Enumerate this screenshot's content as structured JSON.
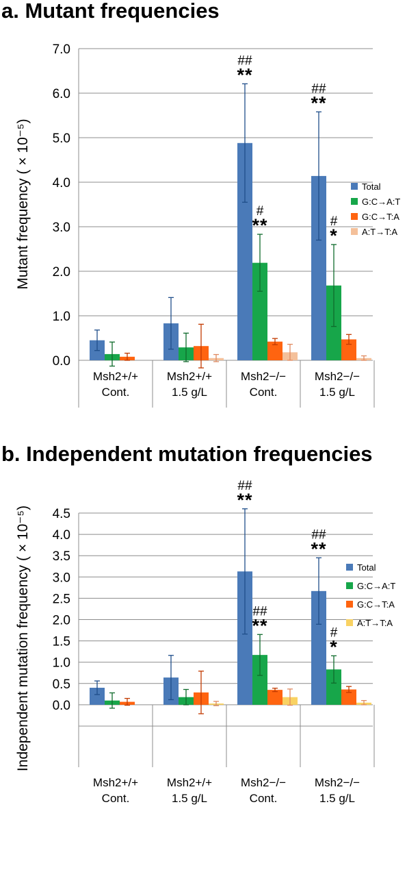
{
  "chart_data": [
    {
      "type": "bar",
      "title": "a. Mutant frequencies",
      "ylabel": "Mutant frequency ( × 10⁻⁵)",
      "ylim": [
        0,
        7
      ],
      "yticks": [
        "0.0",
        "1.0",
        "2.0",
        "3.0",
        "4.0",
        "5.0",
        "6.0",
        "7.0"
      ],
      "grid": true,
      "legend_position": "right",
      "categories": [
        [
          "Msh2+/+",
          "Cont."
        ],
        [
          "Msh2+/+",
          "1.5 g/L"
        ],
        [
          "Msh2−/−",
          "Cont."
        ],
        [
          "Msh2−/−",
          "1.5 g/L"
        ]
      ],
      "series": [
        {
          "name": "Total",
          "color": "#4a7ab8",
          "values": [
            0.45,
            0.83,
            4.88,
            4.14
          ],
          "errors": [
            0.23,
            0.58,
            1.33,
            1.44
          ],
          "sig": [
            "",
            "",
            "**",
            "**"
          ],
          "hash": [
            "",
            "",
            "##",
            "##"
          ]
        },
        {
          "name": "G:C→A:T",
          "color": "#17a64a",
          "values": [
            0.14,
            0.29,
            2.19,
            1.68
          ],
          "errors": [
            0.27,
            0.32,
            0.64,
            0.92
          ],
          "sig": [
            "",
            "",
            "**",
            "*"
          ],
          "hash": [
            "",
            "",
            "#",
            "#"
          ]
        },
        {
          "name": "G:C→T:A",
          "color": "#ff6410",
          "values": [
            0.08,
            0.32,
            0.42,
            0.47
          ],
          "errors": [
            0.08,
            0.49,
            0.07,
            0.11
          ],
          "sig": [
            "",
            "",
            "",
            ""
          ],
          "hash": [
            "",
            "",
            "",
            ""
          ]
        },
        {
          "name": "A:T→T:A",
          "color": "#f4c09a",
          "values": [
            0.0,
            0.05,
            0.18,
            0.05
          ],
          "errors": [
            0.0,
            0.08,
            0.18,
            0.05
          ],
          "sig": [
            "",
            "",
            "",
            ""
          ],
          "hash": [
            "",
            "",
            "",
            ""
          ]
        }
      ]
    },
    {
      "type": "bar",
      "title": "b. Independent mutation frequencies",
      "ylabel": "Independent mutation frequency ( × 10⁻⁵)",
      "ylim": [
        -0.5,
        4.5
      ],
      "yticks": [
        "0.0",
        "0.5",
        "1.0",
        "1.5",
        "2.0",
        "2.5",
        "3.0",
        "3.5",
        "4.0",
        "4.5"
      ],
      "grid": true,
      "legend_position": "right",
      "categories": [
        [
          "Msh2+/+",
          "Cont."
        ],
        [
          "Msh2+/+",
          "1.5 g/L"
        ],
        [
          "Msh2−/−",
          "Cont."
        ],
        [
          "Msh2−/−",
          "1.5 g/L"
        ]
      ],
      "series": [
        {
          "name": "Total",
          "color": "#4a7ab8",
          "values": [
            0.4,
            0.64,
            3.13,
            2.67
          ],
          "errors": [
            0.16,
            0.52,
            1.47,
            0.78
          ],
          "sig": [
            "",
            "",
            "**",
            "**"
          ],
          "hash": [
            "",
            "",
            "##",
            "##"
          ]
        },
        {
          "name": "G:C→A:T",
          "color": "#17a64a",
          "values": [
            0.1,
            0.18,
            1.17,
            0.83
          ],
          "errors": [
            0.18,
            0.18,
            0.48,
            0.32
          ],
          "sig": [
            "",
            "",
            "**",
            "*"
          ],
          "hash": [
            "",
            "",
            "##",
            "#"
          ]
        },
        {
          "name": "G:C→T:A",
          "color": "#ff6410",
          "values": [
            0.07,
            0.29,
            0.35,
            0.36
          ],
          "errors": [
            0.08,
            0.5,
            0.04,
            0.07
          ],
          "sig": [
            "",
            "",
            "",
            ""
          ],
          "hash": [
            "",
            "",
            "",
            ""
          ]
        },
        {
          "name": "A:T→T:A",
          "color": "#f9d263",
          "values": [
            0.0,
            0.03,
            0.18,
            0.05
          ],
          "errors": [
            0.0,
            0.05,
            0.19,
            0.05
          ],
          "sig": [
            "",
            "",
            "",
            ""
          ],
          "hash": [
            "",
            "",
            "",
            ""
          ]
        }
      ]
    }
  ]
}
